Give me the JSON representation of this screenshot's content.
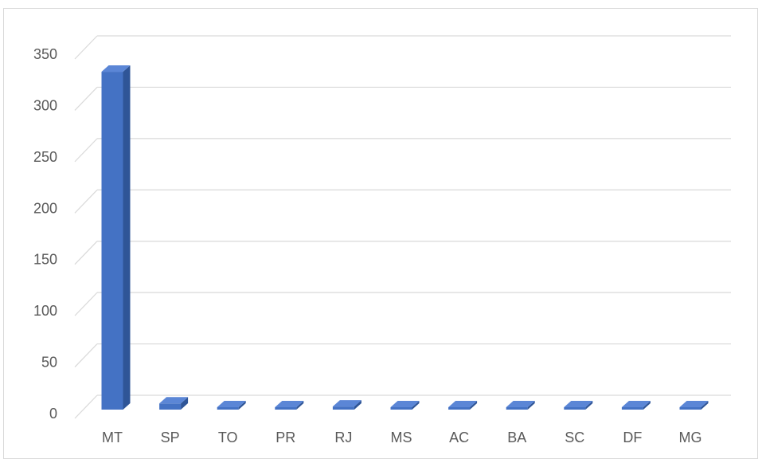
{
  "chart_data": {
    "type": "bar",
    "style": "3d-column",
    "categories": [
      "MT",
      "SP",
      "TO",
      "PR",
      "RJ",
      "MS",
      "AC",
      "BA",
      "SC",
      "DF",
      "MG"
    ],
    "values": [
      329,
      6,
      1,
      2,
      3,
      1,
      1,
      1,
      1,
      1,
      1
    ],
    "title": "",
    "xlabel": "",
    "ylabel": "",
    "ylim": [
      0,
      350
    ],
    "yticks": [
      "0",
      "50",
      "100",
      "150",
      "200",
      "250",
      "300",
      "350"
    ],
    "grid": true,
    "legend": "none",
    "colors": {
      "bar_front": "#4472c4",
      "bar_side": "#2f5597",
      "bar_top": "#5b86d6",
      "gridline": "#d9d9d9",
      "text": "#595959"
    }
  }
}
